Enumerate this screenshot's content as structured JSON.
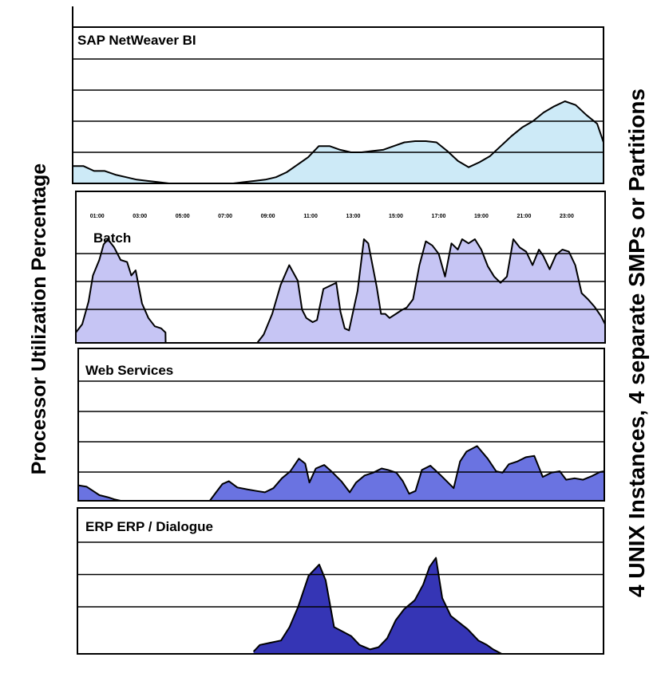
{
  "left_label": "Processor Utilization Percentage",
  "right_label": "4 UNIX Instances, 4 separate SMPs or Partitions",
  "chart_data": [
    {
      "type": "area",
      "title": "SAP NetWeaver BI",
      "color": "#cdeaf7",
      "ylim": [
        0,
        100
      ],
      "x": [
        0,
        0.5,
        1,
        1.5,
        2,
        2.5,
        3,
        3.5,
        4,
        4.5,
        5,
        5.5,
        6,
        6.5,
        7,
        7.5,
        8,
        8.5,
        9,
        9.5,
        10,
        10.5,
        11,
        11.5,
        12,
        12.5,
        13,
        13.5,
        14,
        14.5,
        15,
        15.5,
        16,
        16.5,
        17,
        17.5,
        18,
        18.5,
        19,
        19.5,
        20,
        20.5,
        21,
        21.5,
        22,
        22.5,
        23,
        23.5,
        24,
        24.5,
        24.8
      ],
      "values": [
        14,
        14,
        10,
        10,
        7,
        5,
        3,
        2,
        1,
        0,
        0,
        0,
        0,
        0,
        0,
        0,
        1,
        2,
        3,
        5,
        9,
        15,
        21,
        30,
        30,
        27,
        25,
        25,
        26,
        27,
        30,
        33,
        34,
        34,
        33,
        26,
        18,
        13,
        17,
        22,
        30,
        38,
        45,
        50,
        57,
        62,
        66,
        63,
        55,
        48,
        33
      ]
    },
    {
      "type": "area",
      "title": "Batch",
      "color": "#c6c5f4",
      "ylim": [
        0,
        100
      ],
      "x_ticks": [
        "01:00",
        "03:00",
        "05:00",
        "07:00",
        "09:00",
        "11:00",
        "13:00",
        "15:00",
        "17:00",
        "19:00",
        "21:00",
        "23:00"
      ],
      "x": [
        0,
        0.3,
        0.6,
        0.8,
        1.1,
        1.3,
        1.5,
        1.8,
        2.1,
        2.4,
        2.6,
        2.8,
        3.1,
        3.4,
        3.7,
        4,
        4.2,
        4.21,
        8.2,
        8.5,
        8.8,
        9.2,
        9.6,
        10,
        10.4,
        10.6,
        10.8,
        11.1,
        11.3,
        11.6,
        12.2,
        12.4,
        12.6,
        12.8,
        13.2,
        13.5,
        13.7,
        14.1,
        14.3,
        14.5,
        14.7,
        15,
        15.3,
        15.5,
        15.8,
        16.1,
        16.4,
        16.7,
        17,
        17.3,
        17.6,
        17.9,
        18.1,
        18.4,
        18.7,
        19,
        19.3,
        19.6,
        19.9,
        20.2,
        20.5,
        20.8,
        21.1,
        21.4,
        21.7,
        21.9,
        22.2,
        22.5,
        22.8,
        23.1,
        23.4,
        23.7,
        24,
        24.3,
        24.6,
        24.8
      ],
      "values": [
        10,
        18,
        40,
        65,
        80,
        95,
        100,
        92,
        80,
        78,
        65,
        70,
        38,
        24,
        16,
        14,
        10,
        0,
        0,
        0,
        8,
        28,
        56,
        75,
        60,
        32,
        24,
        20,
        22,
        52,
        58,
        30,
        14,
        12,
        50,
        100,
        96,
        54,
        28,
        28,
        24,
        28,
        32,
        34,
        42,
        75,
        98,
        94,
        86,
        64,
        96,
        90,
        100,
        96,
        100,
        90,
        74,
        64,
        58,
        64,
        100,
        92,
        88,
        75,
        90,
        84,
        71,
        85,
        90,
        88,
        75,
        48,
        42,
        35,
        26,
        18
      ],
      "clip": [
        0,
        24.8
      ]
    },
    {
      "type": "area",
      "title": "Web Services",
      "color": "#6a73e1",
      "ylim": [
        0,
        100
      ],
      "x": [
        0,
        0.4,
        0.7,
        1,
        1.4,
        1.7,
        2,
        2.1,
        6.2,
        6.5,
        6.8,
        7.1,
        7.5,
        8,
        8.4,
        8.8,
        9.2,
        9.6,
        10,
        10.4,
        10.7,
        10.9,
        11.2,
        11.6,
        12,
        12.4,
        12.8,
        13.1,
        13.5,
        13.9,
        14.3,
        14.6,
        15,
        15.3,
        15.6,
        15.9,
        16.2,
        16.6,
        17.1,
        17.7,
        18,
        18.3,
        18.8,
        19.3,
        19.7,
        20,
        20.3,
        20.7,
        21.1,
        21.5,
        21.9,
        22.3,
        22.7,
        23,
        23.4,
        23.8,
        24.2,
        24.6,
        24.8
      ],
      "values": [
        22,
        20,
        14,
        8,
        5,
        2,
        0,
        0,
        0,
        12,
        24,
        28,
        19,
        16,
        14,
        12,
        18,
        32,
        42,
        60,
        53,
        26,
        46,
        51,
        40,
        28,
        12,
        26,
        36,
        40,
        46,
        44,
        40,
        28,
        10,
        14,
        44,
        50,
        36,
        18,
        56,
        70,
        78,
        60,
        42,
        40,
        52,
        56,
        62,
        64,
        34,
        40,
        42,
        30,
        32,
        30,
        35,
        41,
        42
      ]
    },
    {
      "type": "area",
      "title": "ERP ERP / Dialogue",
      "color": "#3535b5",
      "ylim": [
        0,
        100
      ],
      "x": [
        8.3,
        8.6,
        9.1,
        9.6,
        10,
        10.4,
        10.9,
        11.4,
        11.7,
        12.1,
        12.5,
        12.9,
        13.3,
        13.8,
        14.2,
        14.6,
        15,
        15.4,
        15.9,
        16.3,
        16.6,
        16.9,
        17.2,
        17.6,
        18,
        18.4,
        18.9,
        19.3,
        19.6,
        20
      ],
      "values": [
        2,
        8,
        10,
        12,
        24,
        42,
        70,
        80,
        66,
        24,
        20,
        16,
        8,
        4,
        6,
        14,
        30,
        40,
        48,
        62,
        78,
        86,
        50,
        34,
        28,
        22,
        12,
        8,
        4,
        0
      ]
    }
  ]
}
